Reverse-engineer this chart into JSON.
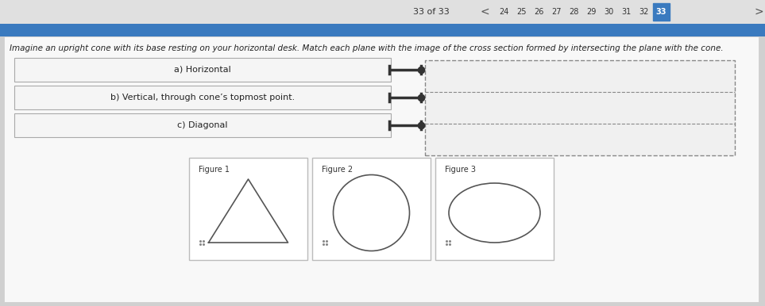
{
  "bg_color": "#d0d0d0",
  "page_bg": "#f0f0f0",
  "title_bar_color": "#3a7abf",
  "title_text": "33 of 33",
  "page_numbers": [
    "24",
    "25",
    "26",
    "27",
    "28",
    "29",
    "30",
    "31",
    "32",
    "33"
  ],
  "question_text": "Imagine an upright cone with its base resting on your horizontal desk. Match each plane with the image of the cross section formed by intersecting the plane with the cone.",
  "labels": [
    "a) Horizontal",
    "b) Vertical, through cone’s topmost point.",
    "c) Diagonal"
  ],
  "figure_labels": [
    "Figure 1",
    "Figure 2",
    "Figure 3"
  ],
  "box_bg": "#ffffff",
  "dashed_box_color": "#888888",
  "connector_color": "#333333",
  "label_box_color": "#f5f5f5",
  "label_box_border": "#aaaaaa"
}
